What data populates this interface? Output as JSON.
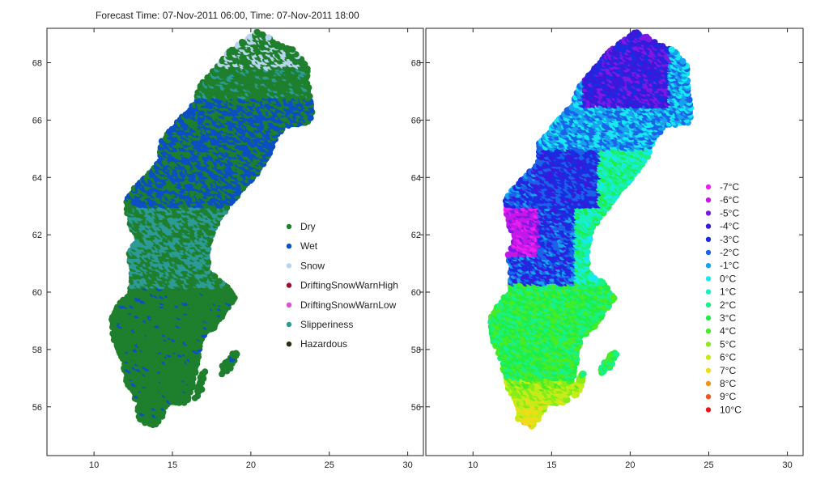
{
  "title": "Forecast Time: 07-Nov-2011 06:00, Time: 07-Nov-2011 18:00",
  "chart_data": [
    {
      "type": "scatter",
      "xlim": [
        7,
        31
      ],
      "ylim": [
        54.3,
        69.2
      ],
      "x_ticks": [
        10,
        15,
        20,
        25,
        30
      ],
      "y_ticks": [
        56,
        58,
        60,
        62,
        64,
        66,
        68
      ],
      "legend_position": "center-right",
      "legend": [
        {
          "name": "Dry",
          "color": "#1e7f2d"
        },
        {
          "name": "Wet",
          "color": "#0a4fc4"
        },
        {
          "name": "Snow",
          "color": "#b8d4ee"
        },
        {
          "name": "DriftingSnowWarnHigh",
          "color": "#9a0f2a"
        },
        {
          "name": "DriftingSnowWarnLow",
          "color": "#e44fd2"
        },
        {
          "name": "Slipperiness",
          "color": "#2c9a96"
        },
        {
          "name": "Hazardous",
          "color": "#2b2b14"
        }
      ]
    },
    {
      "type": "scatter",
      "xlim": [
        7,
        31
      ],
      "ylim": [
        54.3,
        69.2
      ],
      "x_ticks": [
        10,
        15,
        20,
        25,
        30
      ],
      "y_ticks": [
        56,
        58,
        60,
        62,
        64,
        66,
        68
      ],
      "legend_position": "center-right",
      "legend": [
        {
          "name": "-7°C",
          "color": "#f020f0"
        },
        {
          "name": "-6°C",
          "color": "#c418e8"
        },
        {
          "name": "-5°C",
          "color": "#7e18e4"
        },
        {
          "name": "-4°C",
          "color": "#3a18dc"
        },
        {
          "name": "-3°C",
          "color": "#1a2ce0"
        },
        {
          "name": "-2°C",
          "color": "#1a62e8"
        },
        {
          "name": "-1°C",
          "color": "#18a2ee"
        },
        {
          "name": "0°C",
          "color": "#18e8f2"
        },
        {
          "name": "1°C",
          "color": "#18f0c4"
        },
        {
          "name": "2°C",
          "color": "#18f088"
        },
        {
          "name": "3°C",
          "color": "#20ee48"
        },
        {
          "name": "4°C",
          "color": "#48ec24"
        },
        {
          "name": "5°C",
          "color": "#88ec18"
        },
        {
          "name": "6°C",
          "color": "#c4ec18"
        },
        {
          "name": "7°C",
          "color": "#f0dc18"
        },
        {
          "name": "8°C",
          "color": "#f09418"
        },
        {
          "name": "9°C",
          "color": "#f05818"
        },
        {
          "name": "10°C",
          "color": "#e81818"
        }
      ]
    }
  ]
}
